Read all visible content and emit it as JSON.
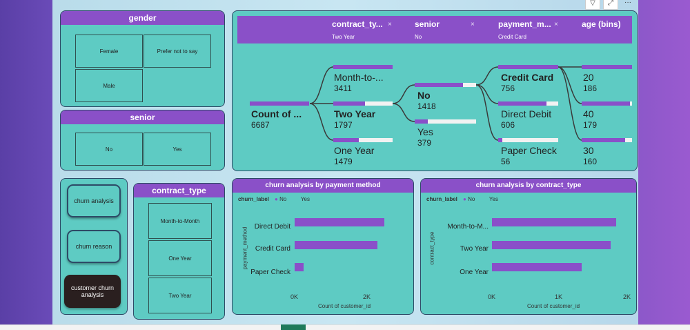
{
  "header_icons": {
    "filter": "filter-icon",
    "focus": "focus-mode-icon",
    "more": "more-options-icon",
    "more_glyph": "···"
  },
  "gender": {
    "title": "gender",
    "options": [
      "Female",
      "Prefer not to say",
      "Male"
    ]
  },
  "senior": {
    "title": "senior",
    "options": [
      "No",
      "Yes"
    ]
  },
  "nav": {
    "buttons": [
      "churn analysis",
      "churn reason",
      "customer churn analysis"
    ]
  },
  "contract_slicer": {
    "title": "contract_type",
    "options": [
      "Month-to-Month",
      "One Year",
      "Two Year"
    ]
  },
  "decomp_tree": {
    "levels": [
      {
        "name": "contract_ty...",
        "selected": "Two Year"
      },
      {
        "name": "senior",
        "selected": "No"
      },
      {
        "name": "payment_m...",
        "selected": "Credit Card"
      },
      {
        "name": "age (bins)",
        "selected": ""
      }
    ],
    "close_glyph": "×",
    "root": {
      "label": "Count of ...",
      "value": "6687",
      "fill": 1.0
    },
    "contract": [
      {
        "label": "Month-to-...",
        "value": "3411",
        "fill": 1.0
      },
      {
        "label": "Two Year",
        "value": "1797",
        "fill": 0.53
      },
      {
        "label": "One Year",
        "value": "1479",
        "fill": 0.43
      }
    ],
    "senior": [
      {
        "label": "No",
        "value": "1418",
        "fill": 0.79
      },
      {
        "label": "Yes",
        "value": "379",
        "fill": 0.21
      }
    ],
    "payment": [
      {
        "label": "Credit Card",
        "value": "756",
        "fill": 1.0
      },
      {
        "label": "Direct Debit",
        "value": "606",
        "fill": 0.8
      },
      {
        "label": "Paper Check",
        "value": "56",
        "fill": 0.07
      }
    ],
    "age": [
      {
        "label": "20",
        "value": "186",
        "fill": 1.0
      },
      {
        "label": "40",
        "value": "179",
        "fill": 0.96
      },
      {
        "label": "30",
        "value": "160",
        "fill": 0.86
      }
    ]
  },
  "payment_chart": {
    "title": "churn analysis by payment method",
    "legend_title": "churn_label",
    "legend": [
      "No",
      "Yes"
    ],
    "ylabel": "payment_method",
    "xlabel": "Count of customer_id",
    "ticks": [
      "0K",
      "2K"
    ],
    "chart_data": {
      "type": "bar",
      "categories": [
        "Direct Debit",
        "Credit Card",
        "Paper Check"
      ],
      "series": [
        {
          "name": "No",
          "values": [
            2600,
            2400,
            250
          ]
        }
      ],
      "xlim": [
        0,
        2600
      ]
    }
  },
  "contract_chart": {
    "title": "churn analysis by contract_type",
    "legend_title": "churn_label",
    "legend": [
      "No",
      "Yes"
    ],
    "ylabel": "contract_type",
    "xlabel": "Count of customer_id",
    "ticks": [
      "0K",
      "1K",
      "2K"
    ],
    "chart_data": {
      "type": "bar",
      "categories": [
        "Month-to-M...",
        "Two Year",
        "One Year"
      ],
      "series": [
        {
          "name": "No",
          "values": [
            1830,
            1750,
            1320
          ]
        }
      ],
      "xlim": [
        0,
        2000
      ]
    }
  },
  "colors": {
    "accent": "#8a4fc9",
    "panel": "#5ecbc3",
    "border": "#2d4a66",
    "dark_button": "#2a1f1f"
  }
}
